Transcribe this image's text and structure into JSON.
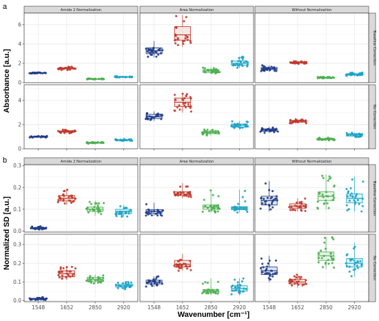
{
  "chart_data": [
    {
      "panel_letter": "a",
      "type": "box",
      "ylabel": "Absorbance [a.u.]",
      "xlabel": "Wavenumber [cm⁻¹]",
      "categories": [
        "1548",
        "1652",
        "2850",
        "2920"
      ],
      "colors": [
        "#1f3c88",
        "#c0392b",
        "#4caf50",
        "#1ba3c6"
      ],
      "columns": [
        "Amide 2 Normalization",
        "Area Normalization",
        "Without Normalization"
      ],
      "rows": [
        "Baseline Correction",
        "No Correction"
      ],
      "rows_ylim": [
        [
          0,
          7.2
        ],
        [
          0,
          5.3
        ]
      ],
      "rows_yticks": [
        [
          0,
          2,
          4,
          6
        ],
        [
          0,
          2,
          4
        ]
      ],
      "grid": true,
      "cells": [
        [
          {
            "median": [
              1.0,
              1.48,
              0.38,
              0.6
            ],
            "q1": [
              0.97,
              1.42,
              0.36,
              0.57
            ],
            "q3": [
              1.03,
              1.55,
              0.4,
              0.63
            ],
            "min": [
              0.92,
              1.3,
              0.33,
              0.53
            ],
            "max": [
              1.06,
              1.68,
              0.43,
              0.67
            ]
          },
          {
            "median": [
              3.3,
              4.95,
              1.2,
              2.0
            ],
            "q1": [
              3.0,
              4.4,
              1.05,
              1.8
            ],
            "q3": [
              3.6,
              5.8,
              1.35,
              2.25
            ],
            "min": [
              2.6,
              3.7,
              0.9,
              1.5
            ],
            "max": [
              4.3,
              7.0,
              1.6,
              2.7
            ]
          },
          {
            "median": [
              1.45,
              2.08,
              0.5,
              0.85
            ],
            "q1": [
              1.35,
              2.03,
              0.46,
              0.78
            ],
            "q3": [
              1.58,
              2.15,
              0.54,
              0.92
            ],
            "min": [
              1.15,
              1.95,
              0.4,
              0.65
            ],
            "max": [
              1.8,
              2.25,
              0.6,
              1.05
            ]
          }
        ],
        [
          {
            "median": [
              1.0,
              1.42,
              0.5,
              0.72
            ],
            "q1": [
              0.97,
              1.37,
              0.47,
              0.69
            ],
            "q3": [
              1.03,
              1.48,
              0.53,
              0.75
            ],
            "min": [
              0.93,
              1.28,
              0.43,
              0.65
            ],
            "max": [
              1.06,
              1.6,
              0.57,
              0.8
            ]
          },
          {
            "median": [
              2.65,
              3.85,
              1.35,
              1.95
            ],
            "q1": [
              2.5,
              3.5,
              1.25,
              1.8
            ],
            "q3": [
              2.85,
              4.2,
              1.45,
              2.05
            ],
            "min": [
              2.3,
              3.0,
              1.1,
              1.6
            ],
            "max": [
              3.1,
              4.6,
              1.6,
              2.3
            ]
          },
          {
            "median": [
              1.55,
              2.28,
              0.8,
              1.15
            ],
            "q1": [
              1.45,
              2.2,
              0.75,
              1.05
            ],
            "q3": [
              1.65,
              2.35,
              0.85,
              1.25
            ],
            "min": [
              1.3,
              2.1,
              0.7,
              0.95
            ],
            "max": [
              1.8,
              2.45,
              0.92,
              1.35
            ]
          }
        ]
      ]
    },
    {
      "panel_letter": "b",
      "type": "box",
      "ylabel": "Normalized SD [a.u.]",
      "xlabel": "Wavenumber [cm⁻¹]",
      "categories": [
        "1548",
        "1652",
        "2850",
        "2920"
      ],
      "colors": [
        "#1f3c88",
        "#c0392b",
        "#4caf50",
        "#1ba3c6"
      ],
      "columns": [
        "Amide 2 Normalization",
        "Area Normalization",
        "Without Normalization"
      ],
      "rows": [
        "Baseline Correction",
        "No Correction"
      ],
      "rows_ylim": [
        [
          -0.005,
          0.305
        ],
        [
          -0.005,
          0.355
        ]
      ],
      "rows_yticks": [
        [
          0.0,
          0.1,
          0.2,
          0.3
        ],
        [
          0.0,
          0.1,
          0.2,
          0.3
        ]
      ],
      "grid": true,
      "cells": [
        [
          {
            "median": [
              0.013,
              0.15,
              0.1,
              0.09
            ],
            "q1": [
              0.01,
              0.138,
              0.09,
              0.08
            ],
            "q3": [
              0.016,
              0.163,
              0.11,
              0.1
            ],
            "min": [
              0.006,
              0.12,
              0.07,
              0.065
            ],
            "max": [
              0.022,
              0.19,
              0.14,
              0.12
            ]
          },
          {
            "median": [
              0.09,
              0.17,
              0.11,
              0.105
            ],
            "q1": [
              0.082,
              0.163,
              0.1,
              0.098
            ],
            "q3": [
              0.098,
              0.18,
              0.12,
              0.112
            ],
            "min": [
              0.07,
              0.15,
              0.085,
              0.085
            ],
            "max": [
              0.13,
              0.22,
              0.19,
              0.19
            ]
          },
          {
            "median": [
              0.14,
              0.115,
              0.16,
              0.15
            ],
            "q1": [
              0.12,
              0.105,
              0.14,
              0.13
            ],
            "q3": [
              0.16,
              0.125,
              0.18,
              0.17
            ],
            "min": [
              0.09,
              0.09,
              0.1,
              0.09
            ],
            "max": [
              0.23,
              0.15,
              0.26,
              0.25
            ]
          }
        ],
        [
          {
            "median": [
              0.01,
              0.145,
              0.115,
              0.08
            ],
            "q1": [
              0.007,
              0.128,
              0.105,
              0.073
            ],
            "q3": [
              0.013,
              0.16,
              0.125,
              0.087
            ],
            "min": [
              0.004,
              0.11,
              0.09,
              0.06
            ],
            "max": [
              0.02,
              0.185,
              0.14,
              0.1
            ]
          },
          {
            "median": [
              0.1,
              0.195,
              0.05,
              0.065
            ],
            "q1": [
              0.09,
              0.18,
              0.043,
              0.052
            ],
            "q3": [
              0.11,
              0.215,
              0.06,
              0.08
            ],
            "min": [
              0.075,
              0.16,
              0.03,
              0.03
            ],
            "max": [
              0.13,
              0.25,
              0.12,
              0.12
            ]
          },
          {
            "median": [
              0.16,
              0.1,
              0.24,
              0.2
            ],
            "q1": [
              0.14,
              0.09,
              0.215,
              0.18
            ],
            "q3": [
              0.18,
              0.115,
              0.26,
              0.225
            ],
            "min": [
              0.1,
              0.07,
              0.17,
              0.13
            ],
            "max": [
              0.24,
              0.14,
              0.34,
              0.31
            ]
          }
        ]
      ]
    }
  ]
}
